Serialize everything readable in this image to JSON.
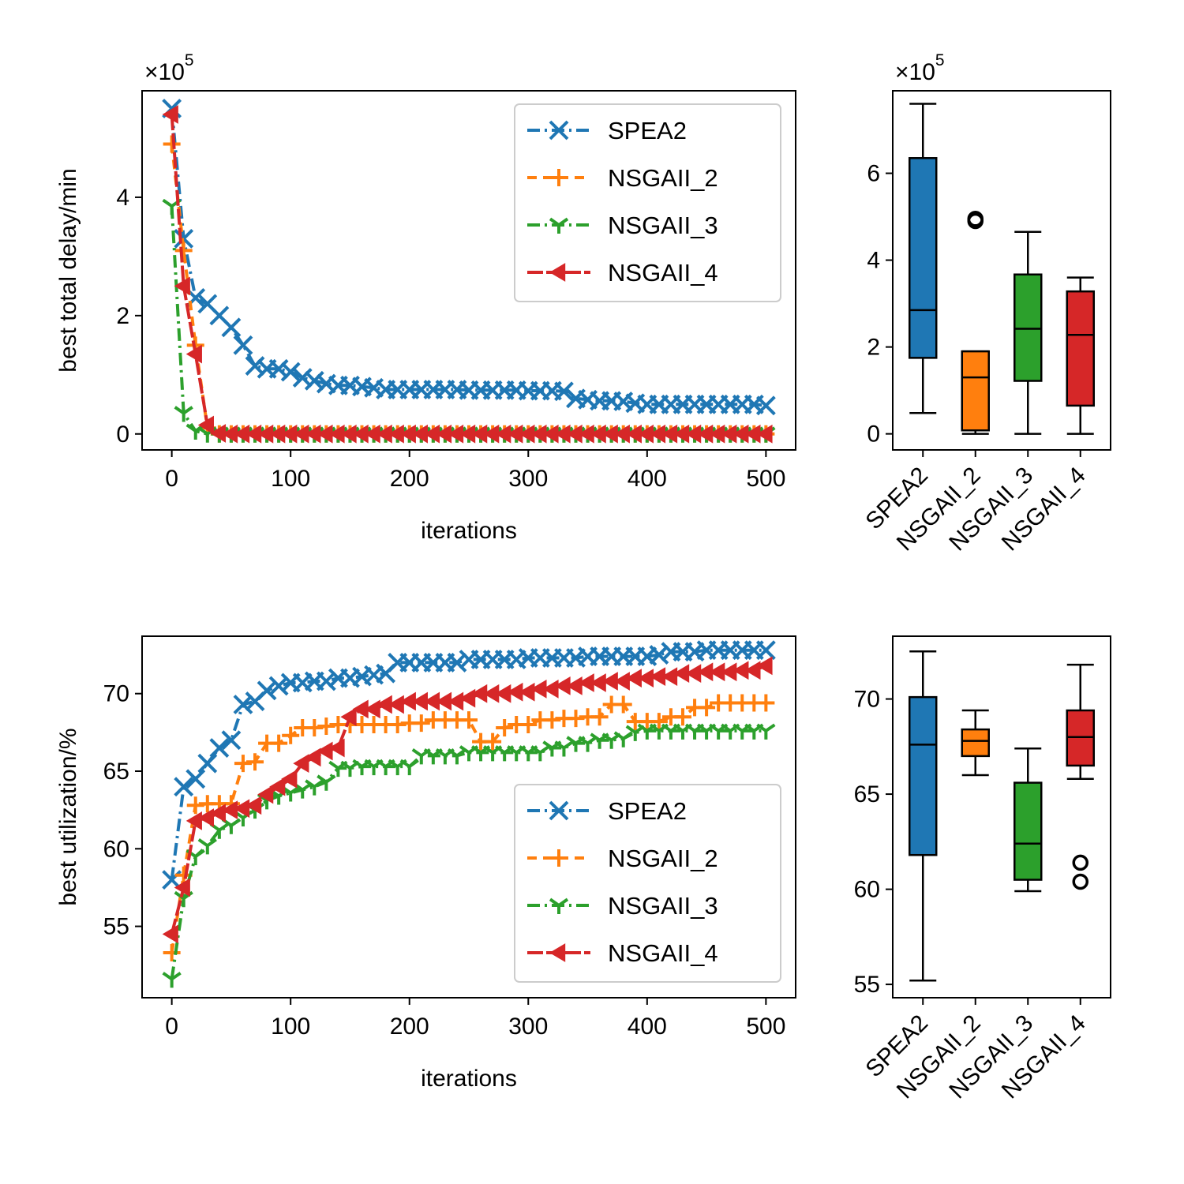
{
  "chart_data": [
    {
      "id": "delay_convergence",
      "type": "line",
      "xlabel": "iterations",
      "ylabel": "best total delay/min",
      "y_offset_text": "×10",
      "y_offset_exponent": "5",
      "xlim": [
        -25,
        525
      ],
      "ylim": [
        -0.27,
        5.8
      ],
      "xticks": [
        0,
        100,
        200,
        300,
        400,
        500
      ],
      "yticks": [
        0,
        2,
        4
      ],
      "legend_position": "top-right",
      "series": [
        {
          "name": "SPEA2",
          "color": "#1f77b4",
          "marker": "x",
          "points": [
            [
              0,
              5.5
            ],
            [
              5,
              3.6
            ],
            [
              10,
              3.3
            ],
            [
              15,
              2.5
            ],
            [
              20,
              2.3
            ],
            [
              30,
              2.2
            ],
            [
              40,
              2.0
            ],
            [
              50,
              1.8
            ],
            [
              60,
              1.5
            ],
            [
              70,
              1.15
            ],
            [
              80,
              1.1
            ],
            [
              90,
              1.1
            ],
            [
              100,
              1.05
            ],
            [
              110,
              0.95
            ],
            [
              120,
              0.9
            ],
            [
              130,
              0.85
            ],
            [
              140,
              0.82
            ],
            [
              160,
              0.8
            ],
            [
              170,
              0.78
            ],
            [
              180,
              0.75
            ],
            [
              200,
              0.75
            ],
            [
              220,
              0.75
            ],
            [
              250,
              0.74
            ],
            [
              300,
              0.73
            ],
            [
              330,
              0.72
            ],
            [
              340,
              0.6
            ],
            [
              350,
              0.58
            ],
            [
              360,
              0.56
            ],
            [
              380,
              0.55
            ],
            [
              390,
              0.52
            ],
            [
              400,
              0.5
            ],
            [
              450,
              0.5
            ],
            [
              500,
              0.48
            ]
          ]
        },
        {
          "name": "NSGAII_2",
          "color": "#ff7f0e",
          "marker": "+",
          "points": [
            [
              0,
              4.9
            ],
            [
              5,
              3.2
            ],
            [
              10,
              3.1
            ],
            [
              15,
              2.6
            ],
            [
              20,
              1.5
            ],
            [
              25,
              0.8
            ],
            [
              30,
              0.1
            ],
            [
              35,
              0.02
            ],
            [
              40,
              0
            ],
            [
              500,
              0
            ]
          ]
        },
        {
          "name": "NSGAII_3",
          "color": "#2ca02c",
          "marker": "tri_down",
          "points": [
            [
              0,
              3.85
            ],
            [
              5,
              0.45
            ],
            [
              10,
              0.35
            ],
            [
              15,
              0.2
            ],
            [
              20,
              0.05
            ],
            [
              25,
              0.02
            ],
            [
              30,
              0
            ],
            [
              500,
              0
            ]
          ]
        },
        {
          "name": "NSGAII_4",
          "color": "#d62728",
          "marker": "<",
          "points": [
            [
              0,
              5.4
            ],
            [
              5,
              3.0
            ],
            [
              10,
              2.5
            ],
            [
              15,
              1.4
            ],
            [
              20,
              1.35
            ],
            [
              25,
              0.9
            ],
            [
              30,
              0.15
            ],
            [
              35,
              0.05
            ],
            [
              40,
              0.01
            ],
            [
              45,
              0
            ],
            [
              500,
              0
            ]
          ]
        }
      ]
    },
    {
      "id": "delay_distribution",
      "type": "box",
      "y_offset_text": "×10",
      "y_offset_exponent": "5",
      "ylim": [
        -0.37,
        7.9
      ],
      "yticks": [
        0,
        2,
        4,
        6
      ],
      "categories": [
        "SPEA2",
        "NSGAII_2",
        "NSGAII_3",
        "NSGAII_4"
      ],
      "boxes": [
        {
          "name": "SPEA2",
          "color": "#1f77b4",
          "whislo": 0.48,
          "q1": 1.75,
          "med": 2.85,
          "q3": 6.35,
          "whishi": 7.6,
          "fliers": []
        },
        {
          "name": "NSGAII_2",
          "color": "#ff7f0e",
          "whislo": 0.0,
          "q1": 0.08,
          "med": 1.3,
          "q3": 1.9,
          "whishi": 1.9,
          "fliers": [
            4.9,
            4.95
          ]
        },
        {
          "name": "NSGAII_3",
          "color": "#2ca02c",
          "whislo": 0.0,
          "q1": 1.22,
          "med": 2.42,
          "q3": 3.67,
          "whishi": 4.65,
          "fliers": []
        },
        {
          "name": "NSGAII_4",
          "color": "#d62728",
          "whislo": 0.0,
          "q1": 0.65,
          "med": 2.28,
          "q3": 3.28,
          "whishi": 3.6,
          "fliers": []
        }
      ]
    },
    {
      "id": "utilization_convergence",
      "type": "line",
      "xlabel": "iterations",
      "ylabel": "best utilization/%",
      "xlim": [
        -25,
        525
      ],
      "ylim": [
        50.4,
        73.7
      ],
      "xticks": [
        0,
        100,
        200,
        300,
        400,
        500
      ],
      "yticks": [
        55,
        60,
        65,
        70
      ],
      "legend_position": "lower-right",
      "series": [
        {
          "name": "SPEA2",
          "color": "#1f77b4",
          "marker": "x",
          "points": [
            [
              0,
              58
            ],
            [
              8,
              64
            ],
            [
              15,
              64.2
            ],
            [
              20,
              64.5
            ],
            [
              25,
              65.2
            ],
            [
              30,
              65.5
            ],
            [
              40,
              66.5
            ],
            [
              50,
              67
            ],
            [
              55,
              67.2
            ],
            [
              60,
              69.3
            ],
            [
              70,
              69.5
            ],
            [
              80,
              70.2
            ],
            [
              90,
              70.5
            ],
            [
              100,
              70.7
            ],
            [
              120,
              70.8
            ],
            [
              140,
              71
            ],
            [
              160,
              71.1
            ],
            [
              170,
              71.2
            ],
            [
              180,
              71.3
            ],
            [
              185,
              72
            ],
            [
              200,
              72
            ],
            [
              230,
              72
            ],
            [
              250,
              72.2
            ],
            [
              300,
              72.3
            ],
            [
              350,
              72.4
            ],
            [
              380,
              72.4
            ],
            [
              410,
              72.5
            ],
            [
              420,
              72.7
            ],
            [
              450,
              72.8
            ],
            [
              500,
              72.8
            ]
          ]
        },
        {
          "name": "NSGAII_2",
          "color": "#ff7f0e",
          "marker": "+",
          "points": [
            [
              0,
              53.3
            ],
            [
              5,
              56
            ],
            [
              10,
              58.3
            ],
            [
              15,
              59
            ],
            [
              20,
              62.8
            ],
            [
              25,
              62.9
            ],
            [
              40,
              62.9
            ],
            [
              55,
              62.9
            ],
            [
              60,
              65.5
            ],
            [
              70,
              65.6
            ],
            [
              80,
              66.8
            ],
            [
              95,
              67
            ],
            [
              100,
              67.3
            ],
            [
              105,
              67.5
            ],
            [
              110,
              67.8
            ],
            [
              130,
              67.9
            ],
            [
              140,
              68
            ],
            [
              160,
              68
            ],
            [
              200,
              68.1
            ],
            [
              220,
              68.3
            ],
            [
              250,
              68.3
            ],
            [
              255,
              66.9
            ],
            [
              270,
              66.9
            ],
            [
              280,
              67.8
            ],
            [
              290,
              68
            ],
            [
              300,
              68
            ],
            [
              310,
              68.3
            ],
            [
              330,
              68.4
            ],
            [
              350,
              68.5
            ],
            [
              370,
              69.3
            ],
            [
              380,
              69.3
            ],
            [
              385,
              68.2
            ],
            [
              410,
              68.2
            ],
            [
              420,
              68.5
            ],
            [
              440,
              69.1
            ],
            [
              460,
              69.4
            ],
            [
              500,
              69.4
            ]
          ]
        },
        {
          "name": "NSGAII_3",
          "color": "#2ca02c",
          "marker": "tri_down",
          "points": [
            [
              0,
              51.6
            ],
            [
              10,
              56.8
            ],
            [
              15,
              58.2
            ],
            [
              20,
              59.5
            ],
            [
              30,
              60.2
            ],
            [
              35,
              61.2
            ],
            [
              50,
              61.5
            ],
            [
              60,
              62
            ],
            [
              70,
              62.5
            ],
            [
              80,
              63.1
            ],
            [
              90,
              63.4
            ],
            [
              100,
              63.6
            ],
            [
              110,
              63.8
            ],
            [
              120,
              64
            ],
            [
              130,
              64.3
            ],
            [
              140,
              65.2
            ],
            [
              160,
              65.3
            ],
            [
              200,
              65.3
            ],
            [
              210,
              66
            ],
            [
              250,
              66.2
            ],
            [
              300,
              66.2
            ],
            [
              320,
              66.5
            ],
            [
              340,
              66.8
            ],
            [
              360,
              67
            ],
            [
              380,
              67.1
            ],
            [
              390,
              67.5
            ],
            [
              400,
              67.6
            ],
            [
              500,
              67.6
            ]
          ]
        },
        {
          "name": "NSGAII_4",
          "color": "#d62728",
          "marker": "<",
          "points": [
            [
              0,
              54.5
            ],
            [
              5,
              55
            ],
            [
              10,
              57.5
            ],
            [
              15,
              57.7
            ],
            [
              20,
              61.8
            ],
            [
              30,
              62
            ],
            [
              40,
              62.3
            ],
            [
              50,
              62.5
            ],
            [
              60,
              62.6
            ],
            [
              70,
              62.8
            ],
            [
              80,
              63.5
            ],
            [
              90,
              64
            ],
            [
              100,
              64.5
            ],
            [
              110,
              65.5
            ],
            [
              120,
              65.9
            ],
            [
              130,
              66.3
            ],
            [
              140,
              66.5
            ],
            [
              145,
              67.8
            ],
            [
              150,
              68.5
            ],
            [
              160,
              69
            ],
            [
              180,
              69.3
            ],
            [
              200,
              69.5
            ],
            [
              250,
              69.7
            ],
            [
              260,
              70
            ],
            [
              290,
              70.1
            ],
            [
              310,
              70.3
            ],
            [
              330,
              70.5
            ],
            [
              350,
              70.7
            ],
            [
              370,
              70.8
            ],
            [
              390,
              71
            ],
            [
              410,
              71.1
            ],
            [
              430,
              71.3
            ],
            [
              450,
              71.4
            ],
            [
              480,
              71.5
            ],
            [
              500,
              71.8
            ]
          ]
        }
      ]
    },
    {
      "id": "utilization_distribution",
      "type": "box",
      "ylim": [
        54.3,
        73.3
      ],
      "yticks": [
        55,
        60,
        65,
        70
      ],
      "categories": [
        "SPEA2",
        "NSGAII_2",
        "NSGAII_3",
        "NSGAII_4"
      ],
      "boxes": [
        {
          "name": "SPEA2",
          "color": "#1f77b4",
          "whislo": 55.2,
          "q1": 61.8,
          "med": 67.6,
          "q3": 70.1,
          "whishi": 72.5,
          "fliers": []
        },
        {
          "name": "NSGAII_2",
          "color": "#ff7f0e",
          "whislo": 66.0,
          "q1": 67.0,
          "med": 67.8,
          "q3": 68.4,
          "whishi": 69.4,
          "fliers": []
        },
        {
          "name": "NSGAII_3",
          "color": "#2ca02c",
          "whislo": 59.9,
          "q1": 60.5,
          "med": 62.4,
          "q3": 65.6,
          "whishi": 67.4,
          "fliers": []
        },
        {
          "name": "NSGAII_4",
          "color": "#d62728",
          "whislo": 65.8,
          "q1": 66.5,
          "med": 68.0,
          "q3": 69.4,
          "whishi": 71.8,
          "fliers": [
            60.4,
            61.4
          ]
        }
      ]
    }
  ]
}
